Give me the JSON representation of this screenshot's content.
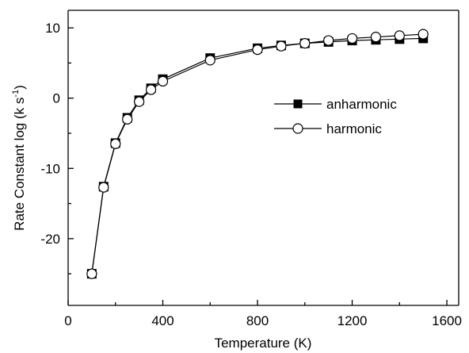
{
  "chart_data": {
    "type": "line",
    "title": "",
    "xlabel": "Temperature (K)",
    "ylabel_main": "Rate Constant log (k s",
    "ylabel_sup": "-1",
    "ylabel_close": ")",
    "xlim": [
      0,
      1650
    ],
    "ylim": [
      -29.5,
      12.5
    ],
    "xticks": [
      0,
      400,
      800,
      1200,
      1600
    ],
    "yticks": [
      -20,
      -10,
      0,
      10
    ],
    "xtick_labels": [
      "0",
      "400",
      "800",
      "1200",
      "1600"
    ],
    "ytick_labels": [
      "-20",
      "-10",
      "0",
      "10"
    ],
    "grid": false,
    "legend_position": "center-right",
    "x": [
      100,
      150,
      200,
      250,
      300,
      350,
      400,
      600,
      800,
      900,
      1000,
      1100,
      1200,
      1300,
      1400,
      1500
    ],
    "series": [
      {
        "name": "anharmonic",
        "marker": "filled-square",
        "color": "#000000",
        "values": [
          -25.0,
          -12.6,
          -6.4,
          -2.8,
          -0.3,
          1.4,
          2.7,
          5.7,
          7.1,
          7.5,
          7.8,
          8.0,
          8.2,
          8.3,
          8.4,
          8.5
        ]
      },
      {
        "name": "harmonic",
        "marker": "open-circle",
        "color": "#000000",
        "values": [
          -25.0,
          -12.7,
          -6.5,
          -3.0,
          -0.5,
          1.2,
          2.4,
          5.4,
          6.9,
          7.4,
          7.8,
          8.2,
          8.5,
          8.7,
          8.9,
          9.1
        ]
      }
    ]
  }
}
